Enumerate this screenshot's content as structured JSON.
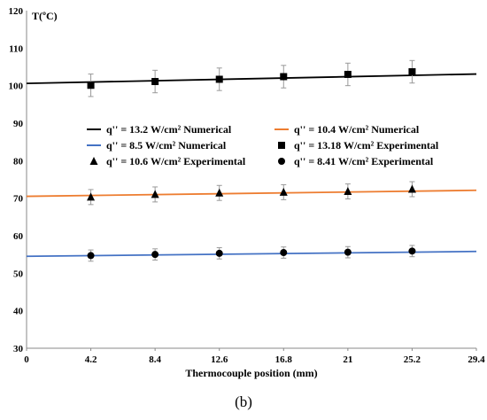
{
  "chart_data": {
    "type": "line",
    "ylabel": "T(ºC)",
    "xlabel": "Thermocouple position (mm)",
    "xlim": [
      0,
      29.4
    ],
    "ylim": [
      30,
      120
    ],
    "x_ticks": [
      "0",
      "4.2",
      "8.4",
      "12.6",
      "16.8",
      "21",
      "25.2",
      "29.4"
    ],
    "y_ticks": [
      "30",
      "40",
      "50",
      "60",
      "70",
      "80",
      "90",
      "100",
      "110",
      "120"
    ],
    "grid": false,
    "legend_placement": "center",
    "numerical_series": [
      {
        "name": "q'' = 13.2 W/cm² Numerical",
        "color": "#000000",
        "x": [
          0,
          29.4
        ],
        "y": [
          100.6,
          103.1
        ]
      },
      {
        "name": "q'' = 10.4 W/cm² Numerical",
        "color": "#ED7D31",
        "x": [
          0,
          29.4
        ],
        "y": [
          70.5,
          72.1
        ]
      },
      {
        "name": "q'' = 8.5 W/cm² Numerical",
        "color": "#4472C4",
        "x": [
          0,
          29.4
        ],
        "y": [
          54.5,
          55.8
        ]
      }
    ],
    "experimental_series": [
      {
        "name": "q'' = 13.18 W/cm² Experimental",
        "marker": "square",
        "x": [
          4.2,
          8.4,
          12.6,
          16.8,
          21,
          25.2
        ],
        "y": [
          100.1,
          101.1,
          101.7,
          102.4,
          103.0,
          103.7
        ],
        "error": [
          3.0,
          3.0,
          3.0,
          3.0,
          3.0,
          3.0
        ]
      },
      {
        "name": "q'' = 10.6 W/cm² Experimental",
        "marker": "triangle",
        "x": [
          4.2,
          8.4,
          12.6,
          16.8,
          21,
          25.2
        ],
        "y": [
          70.3,
          71.0,
          71.4,
          71.6,
          71.8,
          72.4
        ],
        "error": [
          2.0,
          2.0,
          2.0,
          2.0,
          2.0,
          2.0
        ]
      },
      {
        "name": "q'' = 8.41 W/cm² Experimental",
        "marker": "circle",
        "x": [
          4.2,
          8.4,
          12.6,
          16.8,
          21,
          25.2
        ],
        "y": [
          54.7,
          55.0,
          55.3,
          55.5,
          55.6,
          55.9
        ],
        "error": [
          1.5,
          1.5,
          1.5,
          1.5,
          1.5,
          1.5
        ]
      }
    ],
    "legend_order": [
      {
        "kind": "numerical",
        "index": 0
      },
      {
        "kind": "numerical",
        "index": 1
      },
      {
        "kind": "numerical",
        "index": 2
      },
      {
        "kind": "experimental",
        "index": 0
      },
      {
        "kind": "experimental",
        "index": 1
      },
      {
        "kind": "experimental",
        "index": 2
      }
    ]
  },
  "panel_label": "(b)"
}
